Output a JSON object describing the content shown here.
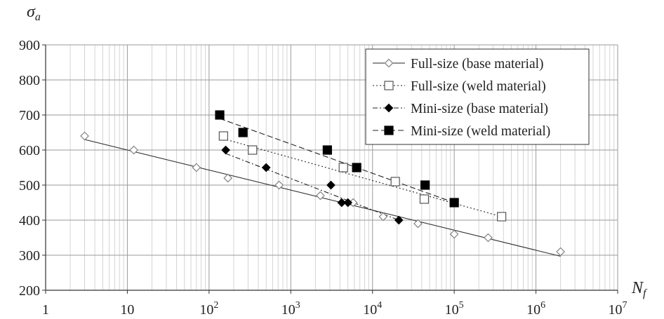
{
  "chart_data": {
    "type": "scatter",
    "title": "",
    "xlabel": "N",
    "xlabel_sub": "f",
    "ylabel": "σ",
    "ylabel_sub": "a",
    "xscale": "log",
    "xlim": [
      1,
      10000000
    ],
    "ylim": [
      200,
      900
    ],
    "yticks": [
      "200",
      "300",
      "400",
      "500",
      "600",
      "700",
      "800",
      "900"
    ],
    "xticks": [
      {
        "base": "1",
        "exp": ""
      },
      {
        "base": "10",
        "exp": ""
      },
      {
        "base": "10",
        "exp": "2"
      },
      {
        "base": "10",
        "exp": "3"
      },
      {
        "base": "10",
        "exp": "4"
      },
      {
        "base": "10",
        "exp": "5"
      },
      {
        "base": "10",
        "exp": "6"
      },
      {
        "base": "10",
        "exp": "7"
      }
    ],
    "grid": true,
    "legend_position": "top-right",
    "series": [
      {
        "name": "Full-size (base material)",
        "marker": "diamond-open",
        "line": "solid",
        "color": "#7f7f7f",
        "x": [
          3,
          12,
          70,
          170,
          720,
          2300,
          5800,
          13500,
          36000,
          100000,
          260000,
          2000000
        ],
        "y": [
          640,
          600,
          550,
          520,
          500,
          470,
          450,
          410,
          390,
          360,
          350,
          310
        ],
        "fit": {
          "x": [
            3,
            2000000
          ],
          "y": [
            630,
            297
          ]
        }
      },
      {
        "name": "Full-size (weld material)",
        "marker": "square-open",
        "line": "dotted",
        "color": "#777777",
        "x": [
          150,
          340,
          4400,
          19000,
          43000,
          380000
        ],
        "y": [
          640,
          600,
          550,
          510,
          460,
          410
        ],
        "fit": {
          "x": [
            150,
            380000
          ],
          "y": [
            632,
            410
          ]
        }
      },
      {
        "name": "Mini-size (base material)",
        "marker": "diamond-filled",
        "line": "dash-dot",
        "color": "#000000",
        "x": [
          160,
          500,
          3100,
          4200,
          5000,
          21000
        ],
        "y": [
          600,
          550,
          500,
          450,
          450,
          400
        ],
        "fit": {
          "x": [
            160,
            21000
          ],
          "y": [
            590,
            400
          ]
        }
      },
      {
        "name": "Mini-size (weld material)",
        "marker": "square-filled",
        "line": "dashed",
        "color": "#000000",
        "x": [
          135,
          260,
          2800,
          6400,
          44000,
          100000
        ],
        "y": [
          700,
          650,
          600,
          550,
          500,
          450
        ],
        "fit": {
          "x": [
            135,
            100000
          ],
          "y": [
            690,
            450
          ]
        }
      }
    ]
  }
}
